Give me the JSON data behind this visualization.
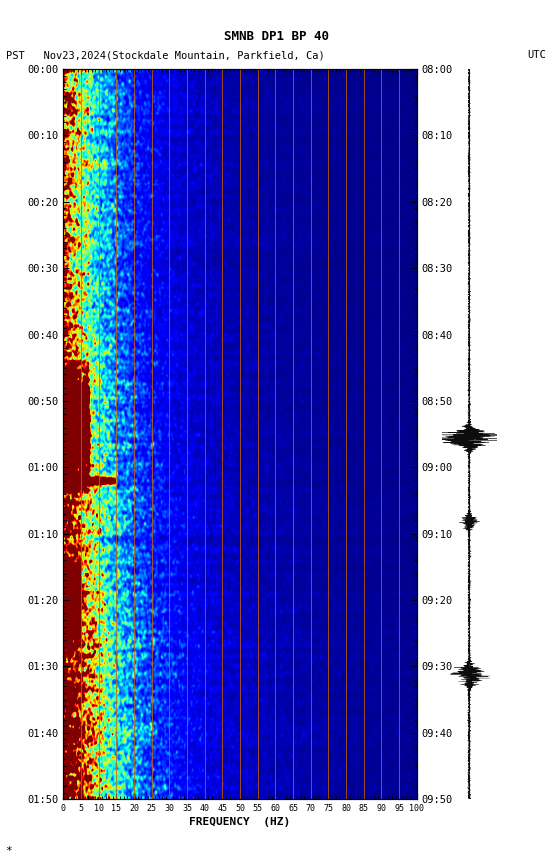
{
  "title_line1": "SMNB DP1 BP 40",
  "title_line2_left": "PST   Nov23,2024(Stockdale Mountain, Parkfield, Ca)",
  "title_line2_right": "UTC",
  "xlabel": "FREQUENCY  (HZ)",
  "freq_ticks": [
    0,
    5,
    10,
    15,
    20,
    25,
    30,
    35,
    40,
    45,
    50,
    55,
    60,
    65,
    70,
    75,
    80,
    85,
    90,
    95,
    100
  ],
  "left_time_labels": [
    "00:00",
    "00:10",
    "00:20",
    "00:30",
    "00:40",
    "00:50",
    "01:00",
    "01:10",
    "01:20",
    "01:30",
    "01:40",
    "01:50"
  ],
  "right_time_labels": [
    "08:00",
    "08:10",
    "08:20",
    "08:30",
    "08:40",
    "08:50",
    "09:00",
    "09:10",
    "09:20",
    "09:30",
    "09:40",
    "09:50"
  ],
  "fig_width": 5.52,
  "fig_height": 8.64,
  "bg_color": "white",
  "vertical_line_color": "#CC6600",
  "vertical_line_positions": [
    5,
    10,
    15,
    20,
    25,
    30,
    35,
    40,
    45,
    50,
    55,
    60,
    65,
    70,
    75,
    80,
    85,
    90,
    95
  ],
  "colormap": "jet",
  "noise_seed": 123
}
